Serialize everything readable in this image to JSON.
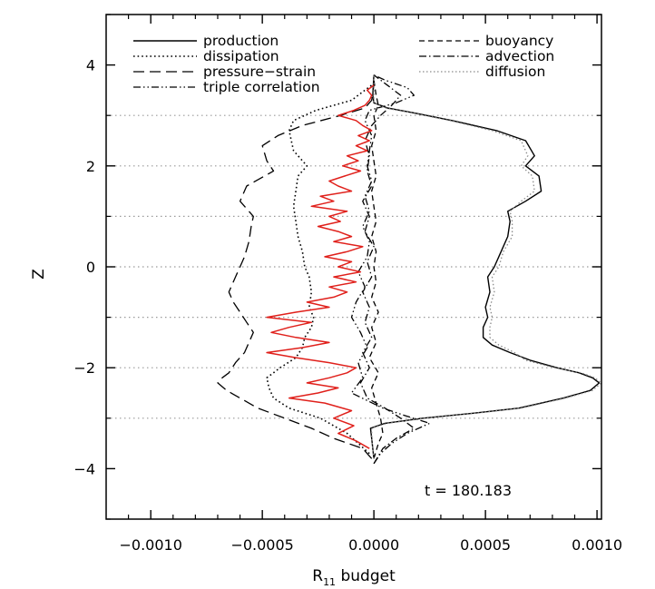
{
  "chart_data": {
    "type": "line",
    "title": "",
    "xlabel": "R",
    "xlabel_sub": "11",
    "xlabel_suffix": " budget",
    "ylabel": "Z",
    "xlim": [
      -0.0012,
      0.00102
    ],
    "ylim": [
      -5,
      5
    ],
    "xticks": [
      -0.001,
      -0.0005,
      0.0,
      0.0005,
      0.001
    ],
    "xtick_labels": [
      "−0.0010",
      "−0.0005",
      "0.0000",
      "0.0005",
      "0.0010"
    ],
    "yticks": [
      -4,
      -2,
      0,
      2,
      4
    ],
    "ytick_labels": [
      "−4",
      "−2",
      "0",
      "2",
      "4"
    ],
    "reference_lines_y": [
      -3,
      -1,
      1,
      3,
      -2,
      0,
      2
    ],
    "annotation": "t  =  180.183",
    "legend_left": [
      "production",
      "dissipation",
      "pressure−strain",
      "triple correlation"
    ],
    "legend_right": [
      "buoyancy",
      "advection",
      "diffusion"
    ],
    "series": [
      {
        "name": "production",
        "style": "solid",
        "color": "#000000",
        "z": [
          -3.8,
          -3.4,
          -3.2,
          -3.1,
          -3.0,
          -2.9,
          -2.8,
          -2.6,
          -2.45,
          -2.3,
          -2.2,
          -2.1,
          -2.0,
          -1.85,
          -1.7,
          -1.55,
          -1.4,
          -1.2,
          -1.0,
          -0.8,
          -0.5,
          -0.2,
          0.0,
          0.3,
          0.6,
          0.9,
          1.1,
          1.3,
          1.5,
          1.8,
          2.0,
          2.2,
          2.5,
          2.7,
          2.9,
          3.05,
          3.15,
          3.25,
          3.4,
          3.8
        ],
        "x": [
          0.0,
          -1e-05,
          -1.5e-05,
          5e-05,
          0.00022,
          0.00045,
          0.00065,
          0.00085,
          0.00097,
          0.00101,
          0.00098,
          0.00092,
          0.00082,
          0.0007,
          0.00061,
          0.00053,
          0.00049,
          0.00049,
          0.00051,
          0.0005,
          0.00052,
          0.00051,
          0.00054,
          0.00057,
          0.0006,
          0.00061,
          0.0006,
          0.00068,
          0.00075,
          0.00074,
          0.00068,
          0.00072,
          0.00068,
          0.00055,
          0.00035,
          0.00018,
          6e-05,
          0.0,
          -5e-06,
          0.0
        ]
      },
      {
        "name": "dissipation",
        "style": "dotted",
        "color": "#000000",
        "z": [
          -3.7,
          -3.3,
          -3.0,
          -2.8,
          -2.6,
          -2.4,
          -2.2,
          -2.0,
          -1.8,
          -1.6,
          -1.4,
          -1.2,
          -1.0,
          -0.8,
          -0.5,
          -0.2,
          0.0,
          0.3,
          0.6,
          0.9,
          1.2,
          1.5,
          1.8,
          2.0,
          2.3,
          2.5,
          2.7,
          2.9,
          3.1,
          3.3,
          3.6
        ],
        "x": [
          -2e-05,
          -0.00012,
          -0.00024,
          -0.00038,
          -0.00045,
          -0.00047,
          -0.00048,
          -0.00042,
          -0.00035,
          -0.00032,
          -0.00031,
          -0.00028,
          -0.00027,
          -0.00029,
          -0.00028,
          -0.00029,
          -0.00031,
          -0.00032,
          -0.00034,
          -0.00035,
          -0.00036,
          -0.00035,
          -0.00034,
          -0.0003,
          -0.00036,
          -0.00037,
          -0.00038,
          -0.00036,
          -0.00026,
          -0.0001,
          -1e-05
        ]
      },
      {
        "name": "pressure−strain",
        "style": "longdash",
        "color": "#000000",
        "z": [
          -3.8,
          -3.6,
          -3.4,
          -3.2,
          -3.0,
          -2.8,
          -2.6,
          -2.45,
          -2.3,
          -2.2,
          -2.1,
          -1.9,
          -1.7,
          -1.5,
          -1.3,
          -1.1,
          -0.9,
          -0.7,
          -0.5,
          -0.2,
          0.0,
          0.2,
          0.5,
          0.8,
          1.0,
          1.3,
          1.6,
          1.9,
          2.1,
          2.4,
          2.6,
          2.8,
          3.0,
          3.15,
          3.3,
          3.6
        ],
        "x": [
          -1e-05,
          -5e-05,
          -0.00018,
          -0.00028,
          -0.0004,
          -0.00052,
          -0.0006,
          -0.00066,
          -0.0007,
          -0.00068,
          -0.00065,
          -0.00062,
          -0.00058,
          -0.00056,
          -0.00054,
          -0.00057,
          -0.0006,
          -0.00063,
          -0.00065,
          -0.00062,
          -0.0006,
          -0.00058,
          -0.00056,
          -0.00055,
          -0.00054,
          -0.0006,
          -0.00057,
          -0.00045,
          -0.00048,
          -0.0005,
          -0.00043,
          -0.00032,
          -0.00015,
          -4e-05,
          -1e-05,
          0.0
        ]
      },
      {
        "name": "triple correlation",
        "style": "dashdotdot",
        "color": "#000000",
        "z": [
          -3.9,
          -3.7,
          -3.5,
          -3.3,
          -3.1,
          -2.95,
          -2.8,
          -2.5,
          -2.2,
          -1.9,
          -1.6,
          -1.3,
          -1.0,
          -0.7,
          -0.4,
          -0.1,
          0.2,
          0.5,
          0.8,
          1.1,
          1.4,
          1.7,
          2.0,
          2.3,
          2.6,
          2.9,
          3.1,
          3.25,
          3.4,
          3.55,
          3.7,
          3.8
        ],
        "x": [
          0.0,
          3e-05,
          8e-05,
          0.00015,
          0.00025,
          0.00014,
          4e-05,
          -0.0001,
          -5e-05,
          -7e-05,
          -3e-05,
          -6e-05,
          -0.0001,
          -8e-05,
          -4e-05,
          -7e-05,
          -3e-05,
          -2e-05,
          -5e-05,
          -2e-05,
          -4e-05,
          -1e-05,
          -3e-05,
          -2e-05,
          -1e-05,
          -4e-05,
          -2e-05,
          0.0001,
          0.00018,
          0.00015,
          5e-05,
          0.0
        ]
      },
      {
        "name": "buoyancy",
        "style": "dashed",
        "color": "#000000",
        "z": [
          -3.8,
          -3.5,
          -3.3,
          -3.0,
          -2.7,
          -2.4,
          -2.1,
          -1.8,
          -1.5,
          -1.2,
          -0.9,
          -0.6,
          -0.3,
          0.0,
          0.3,
          0.6,
          0.9,
          1.2,
          1.5,
          1.8,
          2.1,
          2.4,
          2.7,
          3.0,
          3.2,
          3.4,
          3.7
        ],
        "x": [
          0.0,
          2e-05,
          4e-05,
          3e-05,
          1e-05,
          -1e-05,
          2e-05,
          -2e-05,
          1e-05,
          -1e-05,
          2e-05,
          -1e-05,
          1e-05,
          0.0,
          1e-05,
          -1e-05,
          1e-05,
          0.0,
          -1e-05,
          1e-05,
          0.0,
          -1e-05,
          1e-05,
          0.0,
          2e-05,
          1e-05,
          0.0
        ]
      },
      {
        "name": "advection",
        "style": "dashdot",
        "color": "#000000",
        "z": [
          -3.9,
          -3.6,
          -3.4,
          -3.2,
          -3.0,
          -2.8,
          -2.6,
          -2.3,
          -2.0,
          -1.7,
          -1.4,
          -1.1,
          -0.8,
          -0.5,
          -0.2,
          0.1,
          0.4,
          0.7,
          1.0,
          1.3,
          1.6,
          1.9,
          2.2,
          2.5,
          2.8,
          3.0,
          3.2,
          3.4,
          3.6,
          3.8
        ],
        "x": [
          0.0,
          4e-05,
          0.0001,
          0.00018,
          0.00012,
          5e-05,
          -3e-05,
          -6e-05,
          -2e-05,
          -5e-05,
          -1e-05,
          -4e-05,
          -2e-05,
          -5e-05,
          -1e-05,
          -3e-05,
          0.0,
          -4e-05,
          -2e-05,
          -5e-05,
          -1e-05,
          -3e-05,
          -2e-05,
          -4e-05,
          -1e-05,
          3e-05,
          8e-05,
          0.00012,
          6e-05,
          0.0
        ]
      },
      {
        "name": "diffusion",
        "style": "dotted-gray",
        "color": "#8a8a8a",
        "z": [
          -3.8,
          -3.4,
          -3.2,
          -3.1,
          -3.0,
          -2.9,
          -2.8,
          -2.6,
          -2.45,
          -2.3,
          -2.2,
          -2.1,
          -2.0,
          -1.85,
          -1.7,
          -1.55,
          -1.4,
          -1.2,
          -1.0,
          -0.8,
          -0.5,
          -0.2,
          0.0,
          0.3,
          0.6,
          0.9,
          1.1,
          1.3,
          1.5,
          1.8,
          2.0,
          2.2,
          2.5,
          2.7,
          2.9,
          3.05,
          3.15,
          3.25,
          3.4,
          3.8
        ],
        "x": [
          0.0,
          -1e-05,
          -1e-05,
          6e-05,
          0.00023,
          0.00046,
          0.00066,
          0.00086,
          0.00098,
          0.00102,
          0.00099,
          0.00093,
          0.00081,
          0.00068,
          0.00063,
          0.00056,
          0.00052,
          0.00052,
          0.00053,
          0.00052,
          0.00054,
          0.00053,
          0.00056,
          0.00058,
          0.00062,
          0.00062,
          0.00061,
          0.00066,
          0.00072,
          0.00071,
          0.00066,
          0.00069,
          0.00066,
          0.00053,
          0.00034,
          0.00017,
          5e-05,
          0.0,
          0.0,
          0.0
        ]
      },
      {
        "name": "",
        "style": "solid-red",
        "color": "#e0201b",
        "z": [
          -3.6,
          -3.45,
          -3.3,
          -3.15,
          -3.0,
          -2.85,
          -2.7,
          -2.6,
          -2.5,
          -2.4,
          -2.3,
          -2.2,
          -2.1,
          -2.0,
          -1.9,
          -1.8,
          -1.7,
          -1.6,
          -1.5,
          -1.4,
          -1.3,
          -1.2,
          -1.1,
          -1.0,
          -0.9,
          -0.8,
          -0.7,
          -0.6,
          -0.5,
          -0.4,
          -0.3,
          -0.2,
          -0.1,
          0.0,
          0.1,
          0.2,
          0.3,
          0.4,
          0.5,
          0.6,
          0.7,
          0.8,
          0.9,
          1.0,
          1.1,
          1.2,
          1.3,
          1.4,
          1.5,
          1.6,
          1.7,
          1.8,
          1.9,
          2.0,
          2.1,
          2.2,
          2.3,
          2.4,
          2.5,
          2.6,
          2.7,
          2.8,
          2.9,
          3.0,
          3.1,
          3.2,
          3.3,
          3.4,
          3.5,
          3.6
        ],
        "x": [
          -2e-05,
          -8e-05,
          -0.00016,
          -9e-05,
          -0.00018,
          -0.0001,
          -0.00022,
          -0.00038,
          -0.00025,
          -0.00016,
          -0.0003,
          -0.0002,
          -0.00012,
          -8e-05,
          -0.0002,
          -0.00035,
          -0.00048,
          -0.00032,
          -0.0002,
          -0.00035,
          -0.00046,
          -0.00038,
          -0.00028,
          -0.00048,
          -0.00035,
          -0.0002,
          -0.0003,
          -0.00018,
          -0.00012,
          -0.0002,
          -8e-05,
          -0.00018,
          -6e-05,
          -0.00016,
          -0.0001,
          -0.00022,
          -0.00012,
          -5e-05,
          -0.00018,
          -0.0001,
          -0.00016,
          -0.00025,
          -0.00015,
          -0.0002,
          -0.00012,
          -0.00028,
          -0.00018,
          -0.00024,
          -0.0001,
          -0.00016,
          -0.0002,
          -0.00013,
          -6e-05,
          -0.00014,
          -7e-05,
          -0.00012,
          -3e-05,
          -8e-05,
          -2e-05,
          -7e-05,
          -1e-05,
          -5e-05,
          -8e-05,
          -0.00016,
          -9e-05,
          -4e-05,
          -2e-05,
          -1e-05,
          -3e-05,
          0.0
        ]
      }
    ]
  }
}
